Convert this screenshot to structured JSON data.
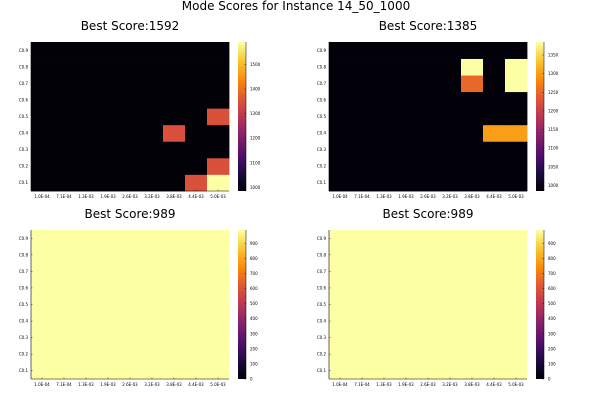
{
  "title": "Mode Scores for Instance 14_50_1000",
  "chart_data": [
    {
      "type": "heatmap",
      "title": "Best Score:1592",
      "x_categories": [
        "1.0E-04",
        "7.1E-04",
        "1.3E-03",
        "1.9E-03",
        "2.6E-03",
        "3.2E-03",
        "3.8E-03",
        "4.4E-03",
        "5.0E-03"
      ],
      "y_categories": [
        "C0.1",
        "C0.2",
        "C0.3",
        "C0.4",
        "C0.5",
        "C0.6",
        "C0.7",
        "C0.8",
        "C0.9"
      ],
      "colorbar": {
        "range": [
          985,
          1592
        ],
        "ticks": [
          1000,
          1100,
          1200,
          1300,
          1400,
          1500
        ]
      },
      "colorscale": "inferno",
      "grid": false,
      "values": [
        [
          989,
          989,
          989,
          989,
          989,
          989,
          989,
          1350,
          1592
        ],
        [
          989,
          989,
          989,
          989,
          989,
          989,
          989,
          989,
          1350
        ],
        [
          989,
          989,
          989,
          989,
          989,
          989,
          989,
          989,
          989
        ],
        [
          989,
          989,
          989,
          989,
          989,
          989,
          1350,
          989,
          989
        ],
        [
          989,
          989,
          989,
          989,
          989,
          989,
          989,
          989,
          1350
        ],
        [
          989,
          989,
          989,
          989,
          989,
          989,
          989,
          989,
          989
        ],
        [
          989,
          989,
          989,
          989,
          989,
          989,
          989,
          989,
          989
        ],
        [
          989,
          989,
          989,
          989,
          989,
          989,
          989,
          989,
          989
        ],
        [
          989,
          989,
          989,
          989,
          989,
          989,
          989,
          989,
          989
        ]
      ]
    },
    {
      "type": "heatmap",
      "title": "Best Score:1385",
      "x_categories": [
        "1.0E-04",
        "7.1E-04",
        "1.3E-03",
        "1.9E-03",
        "2.6E-03",
        "3.2E-03",
        "3.8E-03",
        "4.4E-03",
        "5.0E-03"
      ],
      "y_categories": [
        "C0.1",
        "C0.2",
        "C0.3",
        "C0.4",
        "C0.5",
        "C0.6",
        "C0.7",
        "C0.8",
        "C0.9"
      ],
      "colorbar": {
        "range": [
          985,
          1385
        ],
        "ticks": [
          1000,
          1050,
          1100,
          1150,
          1200,
          1250,
          1300,
          1350
        ]
      },
      "colorscale": "inferno",
      "grid": false,
      "values": [
        [
          989,
          989,
          989,
          989,
          989,
          989,
          989,
          989,
          989
        ],
        [
          989,
          989,
          989,
          989,
          989,
          989,
          989,
          989,
          989
        ],
        [
          989,
          989,
          989,
          989,
          989,
          989,
          989,
          989,
          989
        ],
        [
          989,
          989,
          989,
          989,
          989,
          989,
          989,
          1300,
          1300
        ],
        [
          989,
          989,
          989,
          989,
          989,
          989,
          989,
          989,
          989
        ],
        [
          989,
          989,
          989,
          989,
          989,
          989,
          989,
          989,
          989
        ],
        [
          989,
          989,
          989,
          989,
          989,
          989,
          1250,
          989,
          1385
        ],
        [
          989,
          989,
          989,
          989,
          989,
          989,
          1385,
          989,
          1385
        ],
        [
          989,
          989,
          989,
          989,
          989,
          989,
          989,
          989,
          989
        ]
      ]
    },
    {
      "type": "heatmap",
      "title": "Best Score:989",
      "x_categories": [
        "1.0E-04",
        "7.1E-04",
        "1.3E-03",
        "1.9E-03",
        "2.6E-03",
        "3.2E-03",
        "3.8E-03",
        "4.4E-03",
        "5.0E-03"
      ],
      "y_categories": [
        "C0.1",
        "C0.2",
        "C0.3",
        "C0.4",
        "C0.5",
        "C0.6",
        "C0.7",
        "C0.8",
        "C0.9"
      ],
      "colorbar": {
        "range": [
          0,
          989
        ],
        "ticks": [
          0,
          100,
          200,
          300,
          400,
          500,
          600,
          700,
          800,
          900
        ]
      },
      "colorscale": "inferno",
      "grid": false,
      "values": [
        [
          989,
          989,
          989,
          989,
          989,
          989,
          989,
          989,
          989
        ],
        [
          989,
          989,
          989,
          989,
          989,
          989,
          989,
          989,
          989
        ],
        [
          989,
          989,
          989,
          989,
          989,
          989,
          989,
          989,
          989
        ],
        [
          989,
          989,
          989,
          989,
          989,
          989,
          989,
          989,
          989
        ],
        [
          989,
          989,
          989,
          989,
          989,
          989,
          989,
          989,
          989
        ],
        [
          989,
          989,
          989,
          989,
          989,
          989,
          989,
          989,
          989
        ],
        [
          989,
          989,
          989,
          989,
          989,
          989,
          989,
          989,
          989
        ],
        [
          989,
          989,
          989,
          989,
          989,
          989,
          989,
          989,
          989
        ],
        [
          989,
          989,
          989,
          989,
          989,
          989,
          989,
          989,
          989
        ]
      ]
    },
    {
      "type": "heatmap",
      "title": "Best Score:989",
      "x_categories": [
        "1.0E-04",
        "7.1E-04",
        "1.3E-03",
        "1.9E-03",
        "2.6E-03",
        "3.2E-03",
        "3.8E-03",
        "4.4E-03",
        "5.0E-03"
      ],
      "y_categories": [
        "C0.1",
        "C0.2",
        "C0.3",
        "C0.4",
        "C0.5",
        "C0.6",
        "C0.7",
        "C0.8",
        "C0.9"
      ],
      "colorbar": {
        "range": [
          0,
          989
        ],
        "ticks": [
          0,
          100,
          200,
          300,
          400,
          500,
          600,
          700,
          800,
          900
        ]
      },
      "colorscale": "inferno",
      "grid": false,
      "values": [
        [
          989,
          989,
          989,
          989,
          989,
          989,
          989,
          989,
          989
        ],
        [
          989,
          989,
          989,
          989,
          989,
          989,
          989,
          989,
          989
        ],
        [
          989,
          989,
          989,
          989,
          989,
          989,
          989,
          989,
          989
        ],
        [
          989,
          989,
          989,
          989,
          989,
          989,
          989,
          989,
          989
        ],
        [
          989,
          989,
          989,
          989,
          989,
          989,
          989,
          989,
          989
        ],
        [
          989,
          989,
          989,
          989,
          989,
          989,
          989,
          989,
          989
        ],
        [
          989,
          989,
          989,
          989,
          989,
          989,
          989,
          989,
          989
        ],
        [
          989,
          989,
          989,
          989,
          989,
          989,
          989,
          989,
          989
        ],
        [
          989,
          989,
          989,
          989,
          989,
          989,
          989,
          989,
          989
        ]
      ]
    }
  ]
}
